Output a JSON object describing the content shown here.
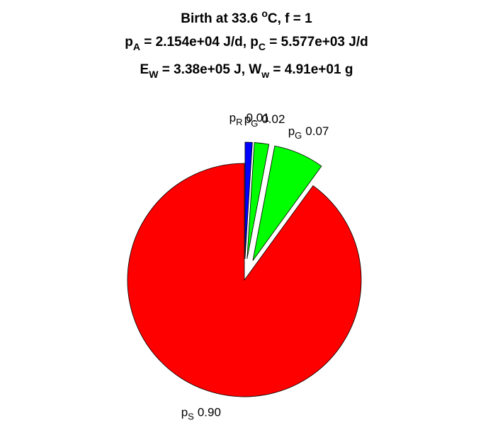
{
  "chart_data": {
    "type": "pie",
    "title": [
      [
        {
          "text": "Birth at 33.6 "
        },
        {
          "text": "o",
          "shift": "sup"
        },
        {
          "text": "C, f = 1"
        }
      ],
      [
        {
          "text": "p"
        },
        {
          "text": "A",
          "shift": "sub"
        },
        {
          "text": " = 2.154e+04 J/d, p"
        },
        {
          "text": "C",
          "shift": "sub"
        },
        {
          "text": " = 5.577e+03 J/d"
        }
      ],
      [
        {
          "text": "E"
        },
        {
          "text": "W",
          "shift": "sub"
        },
        {
          "text": " = 3.38e+05 J, W"
        },
        {
          "text": "w",
          "shift": "sub"
        },
        {
          "text": " = 4.91e+01 g"
        }
      ]
    ],
    "categories": [
      {
        "symbol": "p",
        "sub": "R"
      },
      {
        "symbol": "p",
        "sub": "G"
      },
      {
        "symbol": "p",
        "sub": "G"
      },
      {
        "symbol": "p",
        "sub": "S"
      }
    ],
    "values": [
      0.01,
      0.02,
      0.07,
      0.9
    ],
    "value_labels": [
      "0.01",
      "0.02",
      "0.07",
      "0.90"
    ],
    "colors": [
      "#0000ff",
      "#00ff00",
      "#00ff00",
      "#ff0000"
    ],
    "explode": [
      true,
      true,
      true,
      false
    ],
    "direction": "clockwise"
  }
}
